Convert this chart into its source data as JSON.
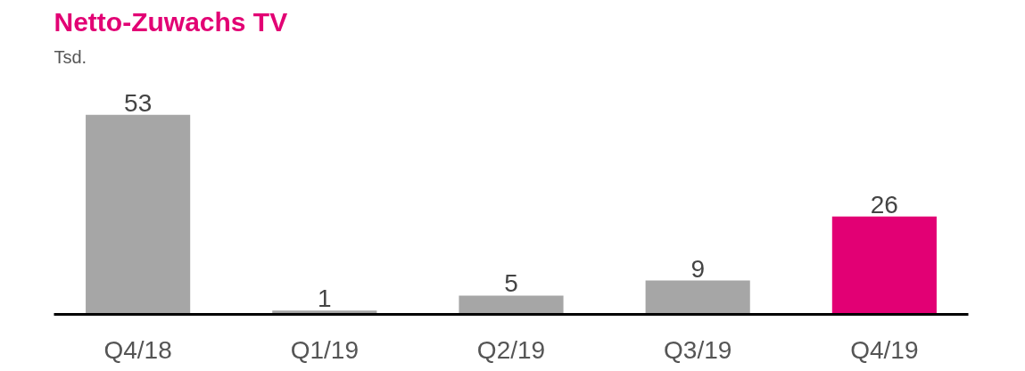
{
  "chart_data": {
    "type": "bar",
    "title": "Netto-Zuwachs TV",
    "subtitle": "Tsd.",
    "categories": [
      "Q4/18",
      "Q1/19",
      "Q2/19",
      "Q3/19",
      "Q4/19"
    ],
    "values": [
      53,
      1,
      5,
      9,
      26
    ],
    "colors": [
      "#a6a6a6",
      "#a6a6a6",
      "#a6a6a6",
      "#a6a6a6",
      "#e20074"
    ],
    "data_labels": true,
    "grid": false
  }
}
